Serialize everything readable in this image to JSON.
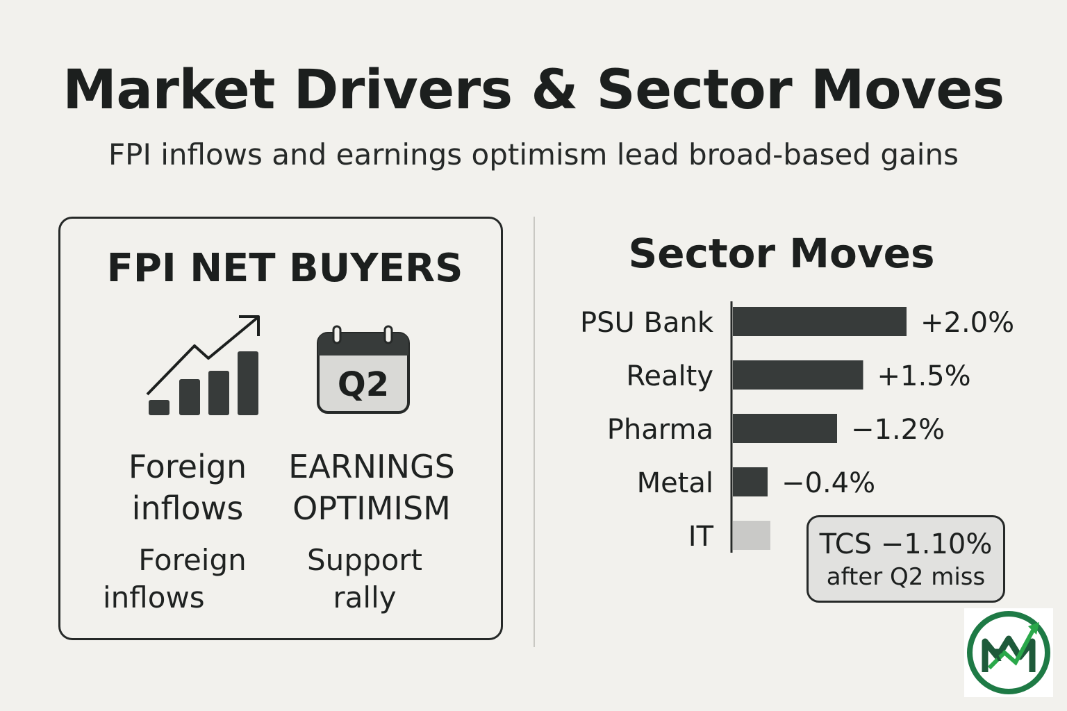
{
  "header": {
    "title": "Market Drivers & Sector Moves",
    "subtitle": "FPI inflows and earnings optimism lead broad-based gains"
  },
  "left_card": {
    "title": "FPI NET BUYERS",
    "calendar_label": "Q2",
    "col1_line1": "Foreign",
    "col1_line2": "inflows",
    "col1_sub1": "Foreign",
    "col1_sub2": "inflows",
    "col2_line1": "EARNINGS",
    "col2_line2": "OPTIMISM",
    "col2_sub1": "Support",
    "col2_sub2": "rally",
    "icons": [
      "bar-growth-icon",
      "calendar-icon"
    ]
  },
  "chart_data": {
    "type": "bar",
    "orientation": "horizontal",
    "title": "Sector Moves",
    "categories": [
      "PSU Bank",
      "Realty",
      "Pharma",
      "Metal",
      "IT"
    ],
    "values": [
      2.0,
      1.5,
      -1.2,
      -0.4,
      -1.1
    ],
    "labels": [
      "+2.0%",
      "+1.5%",
      "−1.2%",
      "−0.4%",
      ""
    ],
    "bar_colors": [
      "#373b3a",
      "#373b3a",
      "#373b3a",
      "#373b3a",
      "#c9c9c7"
    ],
    "note": {
      "line1": "TCS  −1.10%",
      "line2": "after Q2 miss"
    }
  },
  "colors": {
    "background": "#f2f1ed",
    "bar": "#373b3a",
    "bar_muted": "#c9c9c7",
    "logo_green": "#1e7a45"
  },
  "logo": {
    "icon": "rupee-chart-logo-icon",
    "monogram": "MM"
  }
}
